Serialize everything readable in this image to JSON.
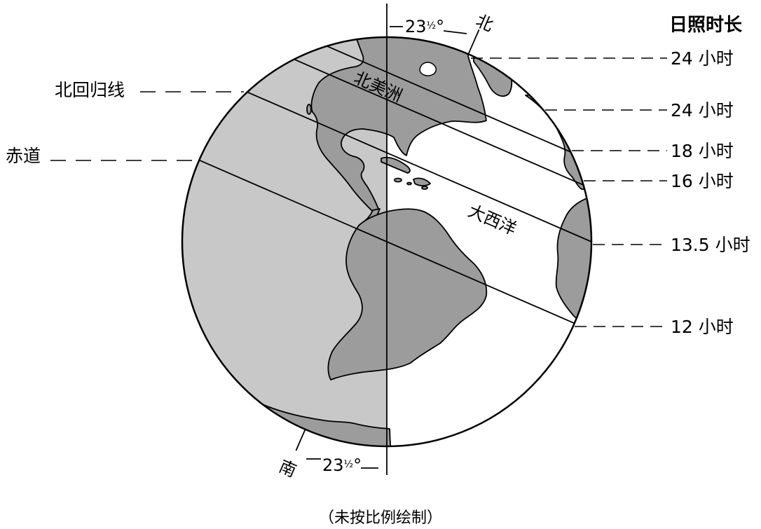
{
  "header": {
    "title": "日照时长"
  },
  "daylight_labels": [
    "24 小时",
    "24 小时",
    "18 小时",
    "16 小时",
    "13.5 小时",
    "12 小时"
  ],
  "latitude_labels": {
    "tropic_of_cancer": "北回归线",
    "equator": "赤道"
  },
  "region_labels": {
    "north_america": "北美洲",
    "atlantic": "大西洋"
  },
  "poles": {
    "north": "北",
    "south": "南"
  },
  "tilt_angle": {
    "whole": "23",
    "fraction": "½",
    "degree": "°"
  },
  "caption": "（未按比例绘制）",
  "colors": {
    "night": "#c8c8c8",
    "land": "#9c9c9c",
    "day": "#ffffff",
    "line": "#000000"
  }
}
